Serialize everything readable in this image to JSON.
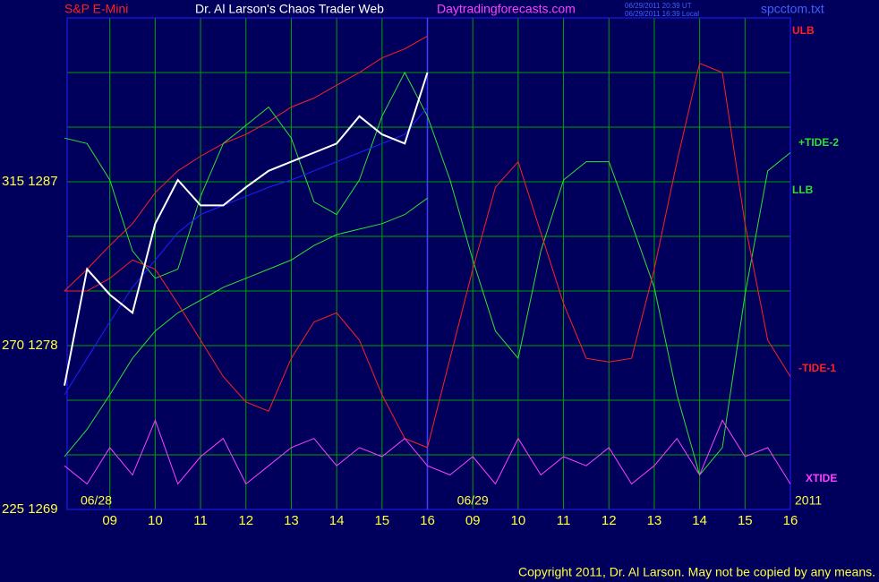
{
  "chart_data": {
    "type": "line",
    "title": "Dr. Al Larson's Chaos Trader Web",
    "instrument": "S&P E-Mini",
    "site": "Daytradingforecasts.com",
    "timestamps": [
      "06/29/2011 20:39 UT",
      "06/29/2011 16:39 Local"
    ],
    "file": "spcctom.txt",
    "copyright": "Copyright 2011, Dr. Al Larson. May not be copied by any means.",
    "day_labels": [
      {
        "x": 0.7,
        "label": "06/28"
      },
      {
        "x": 9,
        "label": "06/29"
      }
    ],
    "year": "2011",
    "day_divider": 8,
    "xlim": [
      0,
      16
    ],
    "ylim": [
      1269,
      1296
    ],
    "xticks": [
      {
        "value": 1,
        "label": "09"
      },
      {
        "value": 2,
        "label": "10"
      },
      {
        "value": 3,
        "label": "11"
      },
      {
        "value": 4,
        "label": "12"
      },
      {
        "value": 5,
        "label": "13"
      },
      {
        "value": 6,
        "label": "14"
      },
      {
        "value": 7,
        "label": "15"
      },
      {
        "value": 8,
        "label": "16"
      },
      {
        "value": 9,
        "label": "09"
      },
      {
        "value": 10,
        "label": "10"
      },
      {
        "value": 11,
        "label": "11"
      },
      {
        "value": 12,
        "label": "12"
      },
      {
        "value": 13,
        "label": "13"
      },
      {
        "value": 14,
        "label": "14"
      },
      {
        "value": 15,
        "label": "15"
      },
      {
        "value": 16,
        "label": "16"
      }
    ],
    "yticks": [
      {
        "value": 1269,
        "label": "225 1269"
      },
      {
        "value": 1278,
        "label": "270 1278"
      },
      {
        "value": 1287,
        "label": "315 1287"
      }
    ],
    "ygrid": [
      1269,
      1272,
      1275,
      1278,
      1281,
      1284,
      1287,
      1290,
      1293,
      1296
    ],
    "grid": true,
    "x": [
      0,
      0.5,
      1,
      1.5,
      2,
      2.5,
      3,
      3.5,
      4,
      4.5,
      5,
      5.5,
      6,
      6.5,
      7,
      7.5,
      8,
      8.5,
      9,
      9.5,
      10,
      10.5,
      11,
      11.5,
      12,
      12.5,
      13,
      13.5,
      14,
      14.5,
      15,
      15.5,
      16
    ],
    "series": [
      {
        "name": "ULB",
        "color": "#ff2020",
        "values": [
          1281.0,
          1282.2,
          1283.5,
          1284.7,
          1286.4,
          1287.6,
          1288.4,
          1289.1,
          1289.6,
          1290.3,
          1291.1,
          1291.6,
          1292.3,
          1293.0,
          1293.8,
          1294.3,
          1295.0,
          null,
          null,
          null,
          null,
          null,
          null,
          null,
          null,
          null,
          null,
          null,
          null,
          null,
          null,
          null,
          null
        ]
      },
      {
        "name": "+TIDE-2",
        "color": "#30e030",
        "values": [
          1289.4,
          1289.1,
          1287.1,
          1283.2,
          1281.7,
          1282.2,
          1286.2,
          1289.1,
          1290.1,
          1291.1,
          1289.4,
          1285.9,
          1285.2,
          1287.1,
          1290.6,
          1293.0,
          1290.6,
          1287.1,
          1282.7,
          1278.8,
          1277.3,
          1283.2,
          1287.1,
          1288.1,
          1288.1,
          1284.7,
          1281.2,
          1275.3,
          1270.9,
          1272.4,
          1280.8,
          1287.6,
          1288.6
        ]
      },
      {
        "name": "LLB",
        "color": "#30e030",
        "values": [
          1271.9,
          1273.4,
          1275.3,
          1277.3,
          1278.8,
          1279.8,
          1280.5,
          1281.2,
          1281.7,
          1282.2,
          1282.7,
          1283.5,
          1284.1,
          1284.4,
          1284.7,
          1285.2,
          1286.1,
          null,
          null,
          null,
          null,
          null,
          null,
          null,
          null,
          null,
          null,
          null,
          null,
          null,
          null,
          null,
          null
        ]
      },
      {
        "name": "-TIDE-1",
        "color": "#ff2020",
        "values": [
          1281.0,
          1281.0,
          1281.7,
          1282.7,
          1282.2,
          1280.3,
          1278.3,
          1276.3,
          1274.9,
          1274.4,
          1277.3,
          1279.3,
          1279.8,
          1278.3,
          1275.3,
          1272.9,
          1272.4,
          1277.3,
          1282.2,
          1286.7,
          1288.1,
          1284.2,
          1280.3,
          1277.3,
          1277.1,
          1277.3,
          1282.2,
          1288.1,
          1293.5,
          1293.0,
          1284.7,
          1278.3,
          1276.3
        ]
      },
      {
        "name": "XTIDE",
        "color": "#ff40ff",
        "values": [
          1271.4,
          1270.4,
          1272.4,
          1270.9,
          1273.9,
          1270.4,
          1271.9,
          1272.9,
          1270.4,
          1271.4,
          1272.4,
          1272.9,
          1271.4,
          1272.4,
          1271.9,
          1272.9,
          1271.4,
          1270.9,
          1271.9,
          1270.4,
          1272.9,
          1270.9,
          1271.9,
          1271.4,
          1272.4,
          1270.4,
          1271.4,
          1272.9,
          1270.9,
          1273.9,
          1271.9,
          1272.4,
          1270.4
        ]
      },
      {
        "color": "#2020ff",
        "values": [
          1275.3,
          1277.3,
          1279.3,
          1281.2,
          1282.7,
          1284.2,
          1285.2,
          1285.7,
          1286.2,
          1286.7,
          1287.1,
          1287.6,
          1288.1,
          1288.6,
          1289.1,
          1289.6,
          1291.1,
          null,
          null,
          null,
          null,
          null,
          null,
          null,
          null,
          null,
          null,
          null,
          null,
          null,
          null,
          null,
          null
        ]
      },
      {
        "color": "#ffffff",
        "values": [
          1275.8,
          1282.2,
          1280.8,
          1279.8,
          1284.7,
          1287.1,
          1285.7,
          1285.7,
          1286.7,
          1287.6,
          1288.1,
          1288.6,
          1289.1,
          1290.6,
          1289.6,
          1289.1,
          1293.0,
          null,
          null,
          null,
          null,
          null,
          null,
          null,
          null,
          null,
          null,
          null,
          null,
          null,
          null,
          null,
          null
        ]
      }
    ]
  }
}
